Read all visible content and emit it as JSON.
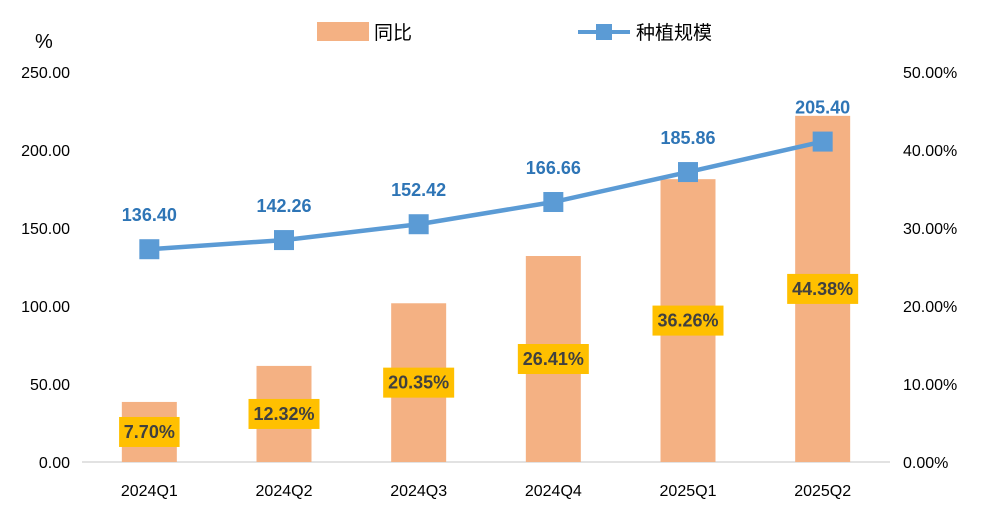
{
  "chart_data": {
    "type": "bar+line",
    "title": "",
    "categories": [
      "2024Q1",
      "2024Q2",
      "2024Q3",
      "2024Q4",
      "2025Q1",
      "2025Q2"
    ],
    "y_left_unit": "%",
    "y_left_ticks": [
      "0.00",
      "50.00",
      "100.00",
      "150.00",
      "200.00",
      "250.00"
    ],
    "y_right_ticks": [
      "0.00%",
      "10.00%",
      "20.00%",
      "30.00%",
      "40.00%",
      "50.00%"
    ],
    "ylim_left": [
      0,
      250
    ],
    "ylim_right": [
      0,
      50
    ],
    "legend_position": "top-center",
    "series": [
      {
        "name": "同比",
        "type": "bar",
        "axis": "right",
        "color": "#F4B183",
        "values": [
          7.7,
          12.32,
          20.35,
          26.41,
          36.26,
          44.38
        ],
        "labels": [
          "7.70%",
          "12.32%",
          "20.35%",
          "26.41%",
          "36.26%",
          "44.38%"
        ],
        "label_bg": "#FFC000"
      },
      {
        "name": "种植规模",
        "type": "line",
        "axis": "left",
        "color": "#5B9BD5",
        "label_color": "#2E75B6",
        "values": [
          136.4,
          142.26,
          152.42,
          166.66,
          185.86,
          205.4
        ],
        "labels": [
          "136.40",
          "142.26",
          "152.42",
          "166.66",
          "185.86",
          "205.40"
        ]
      }
    ]
  }
}
